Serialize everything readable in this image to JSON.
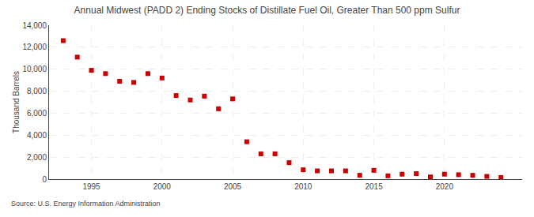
{
  "chart_data": {
    "type": "scatter",
    "title": "Annual Midwest (PADD 2) Ending Stocks of Distillate Fuel Oil, Greater Than 500 ppm Sulfur",
    "ylabel": "Thousand Barrels",
    "source": "Source: U.S. Energy Information Administration",
    "x": [
      1993,
      1994,
      1995,
      1996,
      1997,
      1998,
      1999,
      2000,
      2001,
      2002,
      2003,
      2004,
      2005,
      2006,
      2007,
      2008,
      2009,
      2010,
      2011,
      2012,
      2013,
      2014,
      2015,
      2016,
      2017,
      2018,
      2019,
      2020,
      2021,
      2022,
      2023,
      2024
    ],
    "values": [
      12600,
      11100,
      9900,
      9600,
      8900,
      8800,
      9600,
      9200,
      7600,
      7200,
      7550,
      6400,
      7300,
      3400,
      2300,
      2300,
      1500,
      850,
      750,
      750,
      750,
      350,
      800,
      300,
      450,
      500,
      200,
      450,
      400,
      350,
      250,
      150
    ],
    "color": "#cc0000",
    "marker": "square",
    "xlim": [
      1992,
      2025.5
    ],
    "xticks": [
      1995,
      2000,
      2005,
      2010,
      2015,
      2020
    ],
    "ylim": [
      0,
      14000
    ],
    "yticks": [
      0,
      {
        "value": 2000,
        "label": "2,000"
      },
      {
        "value": 4000,
        "label": "4,000"
      },
      {
        "value": 6000,
        "label": "6,000"
      },
      {
        "value": 8000,
        "label": "8,000"
      },
      {
        "value": 10000,
        "label": "10,000"
      },
      {
        "value": 12000,
        "label": "12,000"
      },
      {
        "value": 14000,
        "label": "14,000"
      }
    ],
    "grid": true
  }
}
